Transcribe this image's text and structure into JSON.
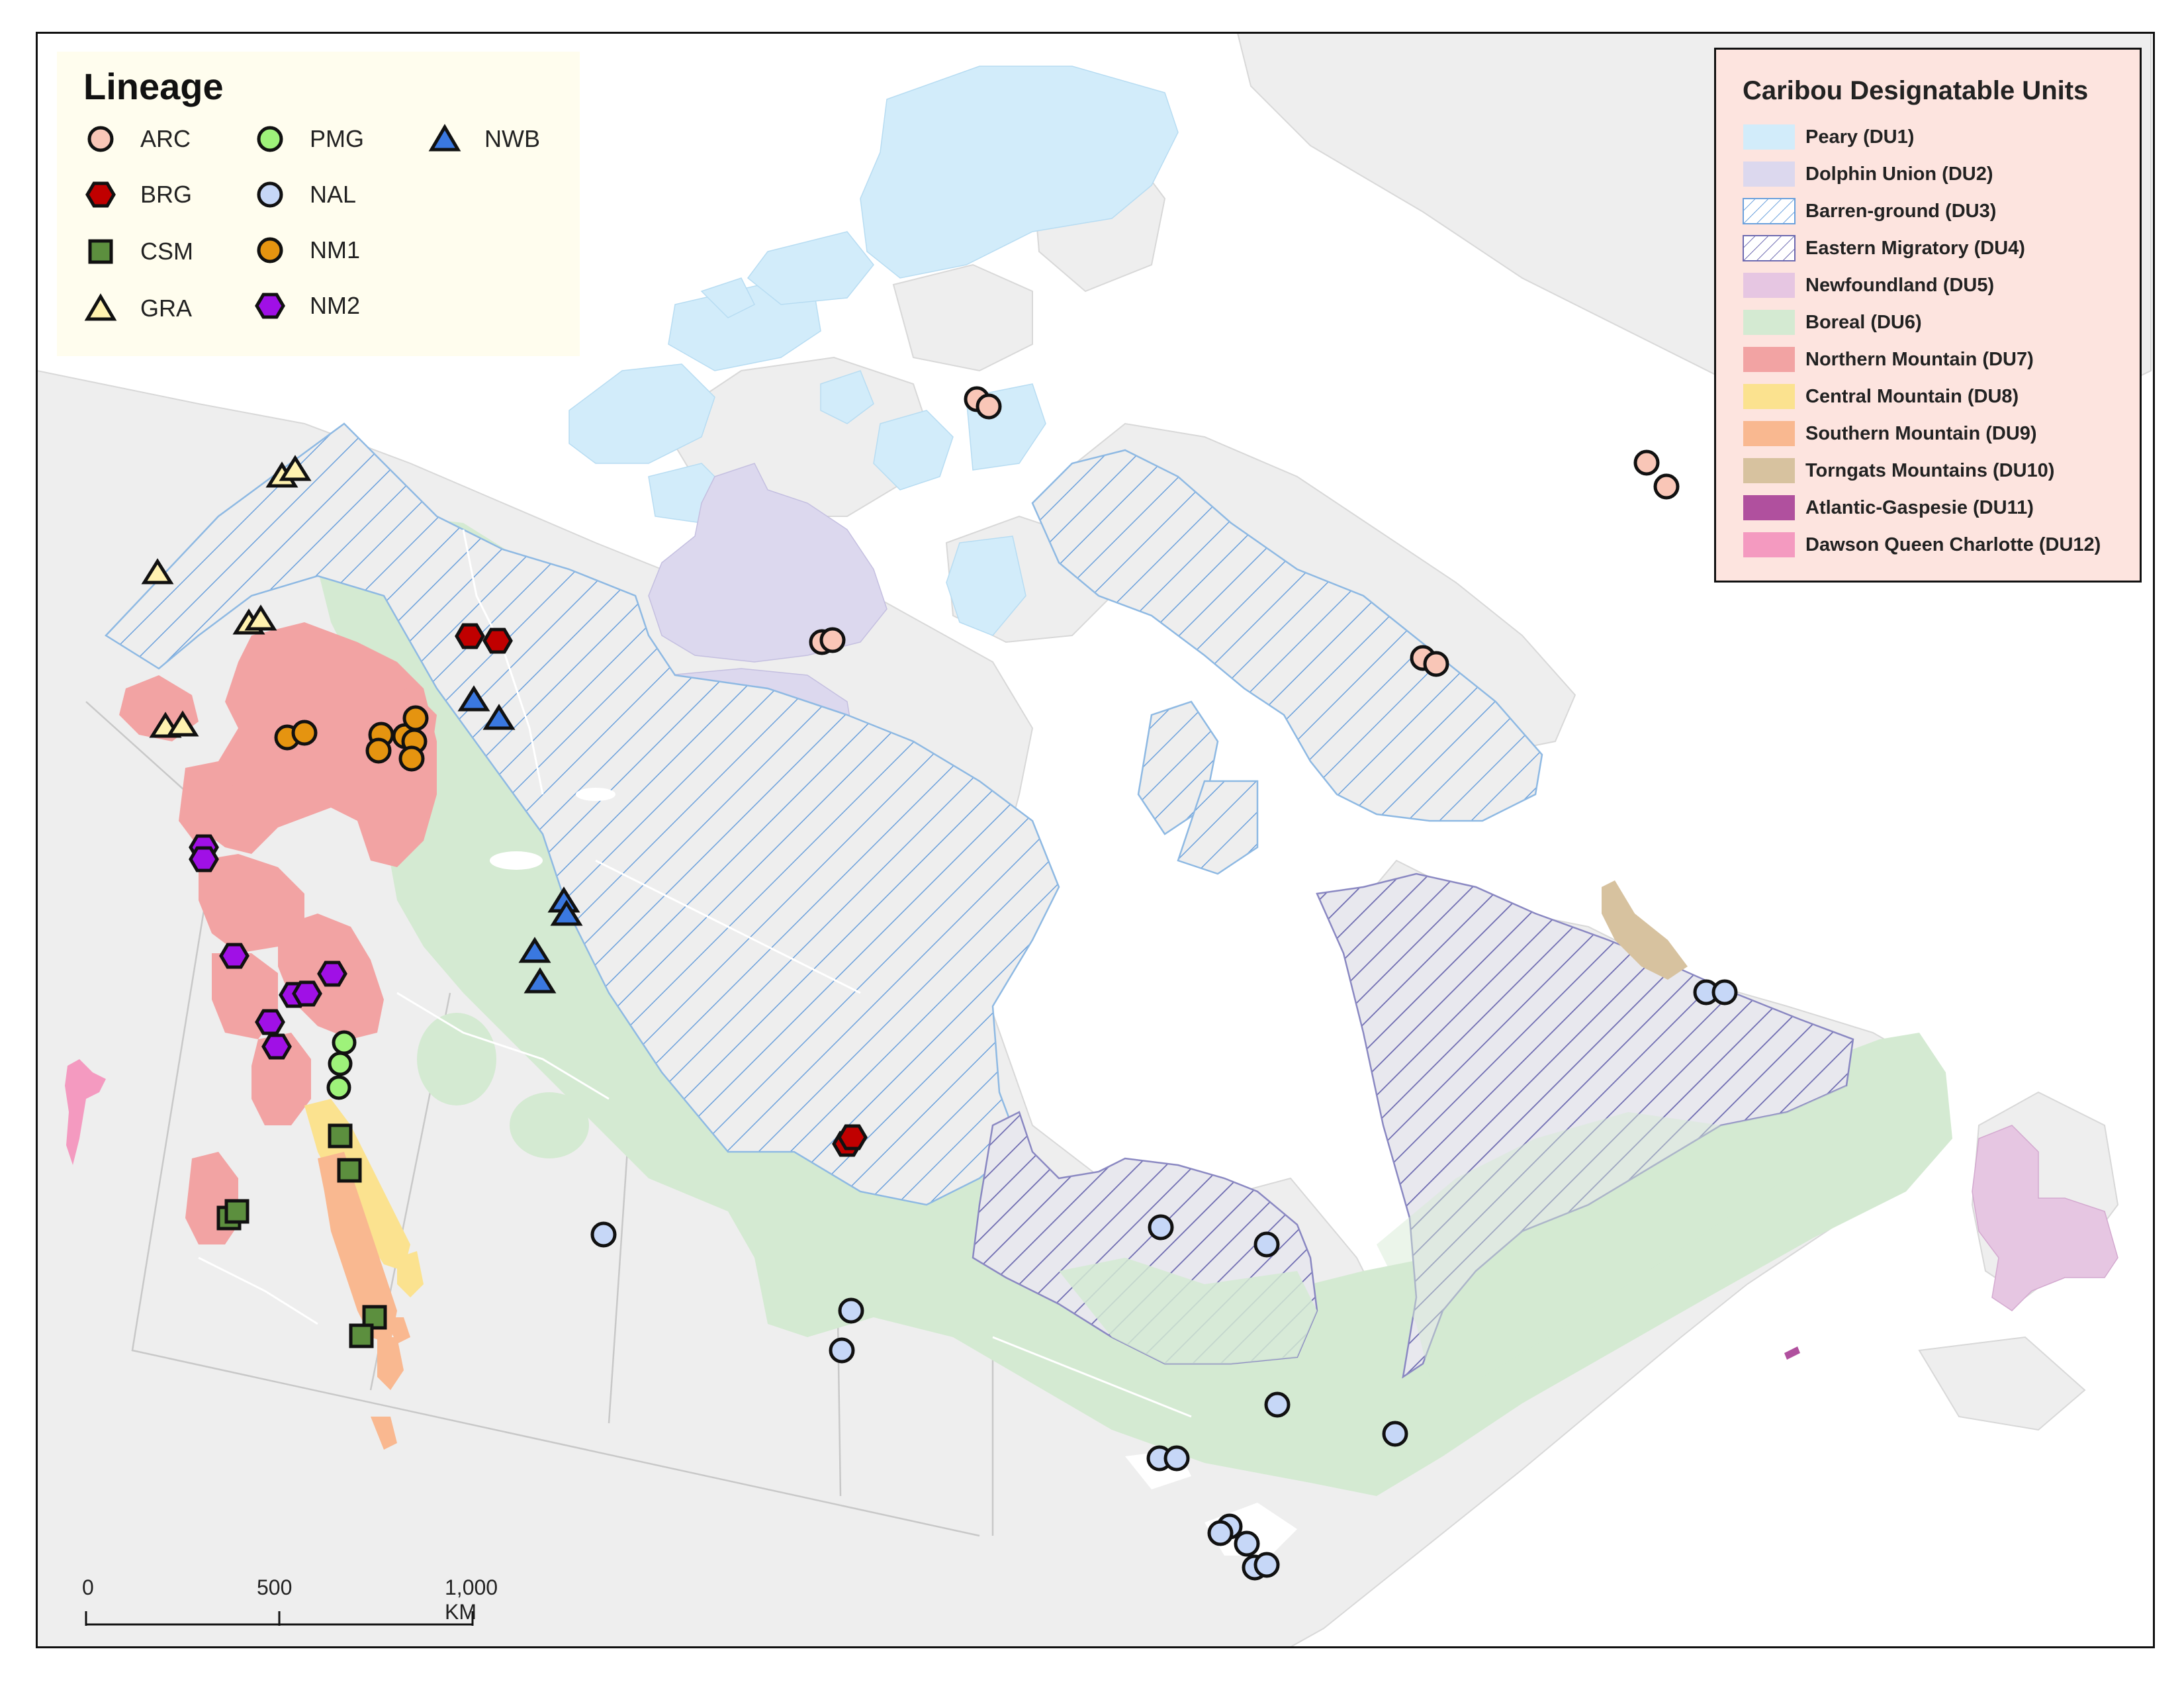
{
  "lineage_legend": {
    "title": "Lineage",
    "items": [
      {
        "code": "ARC",
        "shape": "circle",
        "color": "#f9c6b7"
      },
      {
        "code": "BRG",
        "shape": "hexagon",
        "color": "#c00000"
      },
      {
        "code": "CSM",
        "shape": "square",
        "color": "#5c8f3e"
      },
      {
        "code": "GRA",
        "shape": "triangle",
        "color": "#fff2b0"
      },
      {
        "code": "PMG",
        "shape": "circle",
        "color": "#9ef27a"
      },
      {
        "code": "NAL",
        "shape": "circle",
        "color": "#c6d7f7"
      },
      {
        "code": "NM1",
        "shape": "circle",
        "color": "#e59410"
      },
      {
        "code": "NM2",
        "shape": "hexagon",
        "color": "#a010e6"
      },
      {
        "code": "NWB",
        "shape": "triangle",
        "color": "#3a78e0"
      }
    ]
  },
  "du_legend": {
    "title": "Caribou Designatable Units",
    "items": [
      {
        "label": "Peary (DU1)",
        "fill": "#d2ecfa",
        "pattern": "solid"
      },
      {
        "label": "Dolphin Union (DU2)",
        "fill": "#dcd8ee",
        "pattern": "solid"
      },
      {
        "label": "Barren-ground (DU3)",
        "fill": "#eeeeee",
        "pattern": "hatch-blue"
      },
      {
        "label": "Eastern Migratory (DU4)",
        "fill": "#eeeeee",
        "pattern": "hatch-purple"
      },
      {
        "label": "Newfoundland (DU5)",
        "fill": "#e6c6e2",
        "pattern": "solid"
      },
      {
        "label": "Boreal (DU6)",
        "fill": "#d4ead2",
        "pattern": "solid"
      },
      {
        "label": "Northern Mountain (DU7)",
        "fill": "#f2a3a3",
        "pattern": "solid"
      },
      {
        "label": "Central Mountain (DU8)",
        "fill": "#fbe28f",
        "pattern": "solid"
      },
      {
        "label": "Southern Mountain (DU9)",
        "fill": "#f9b890",
        "pattern": "solid"
      },
      {
        "label": "Torngats Mountains (DU10)",
        "fill": "#d7c29f",
        "pattern": "solid"
      },
      {
        "label": "Atlantic-Gaspesie (DU11)",
        "fill": "#b0509e",
        "pattern": "solid"
      },
      {
        "label": "Dawson Queen Charlotte (DU12)",
        "fill": "#f49ac0",
        "pattern": "solid"
      }
    ]
  },
  "scale_bar": {
    "labels": [
      "0",
      "500",
      "1,000 KM"
    ]
  },
  "colors": {
    "land": "#eeeeee",
    "water": "#ffffff",
    "boundary": "#c8c8c8"
  }
}
